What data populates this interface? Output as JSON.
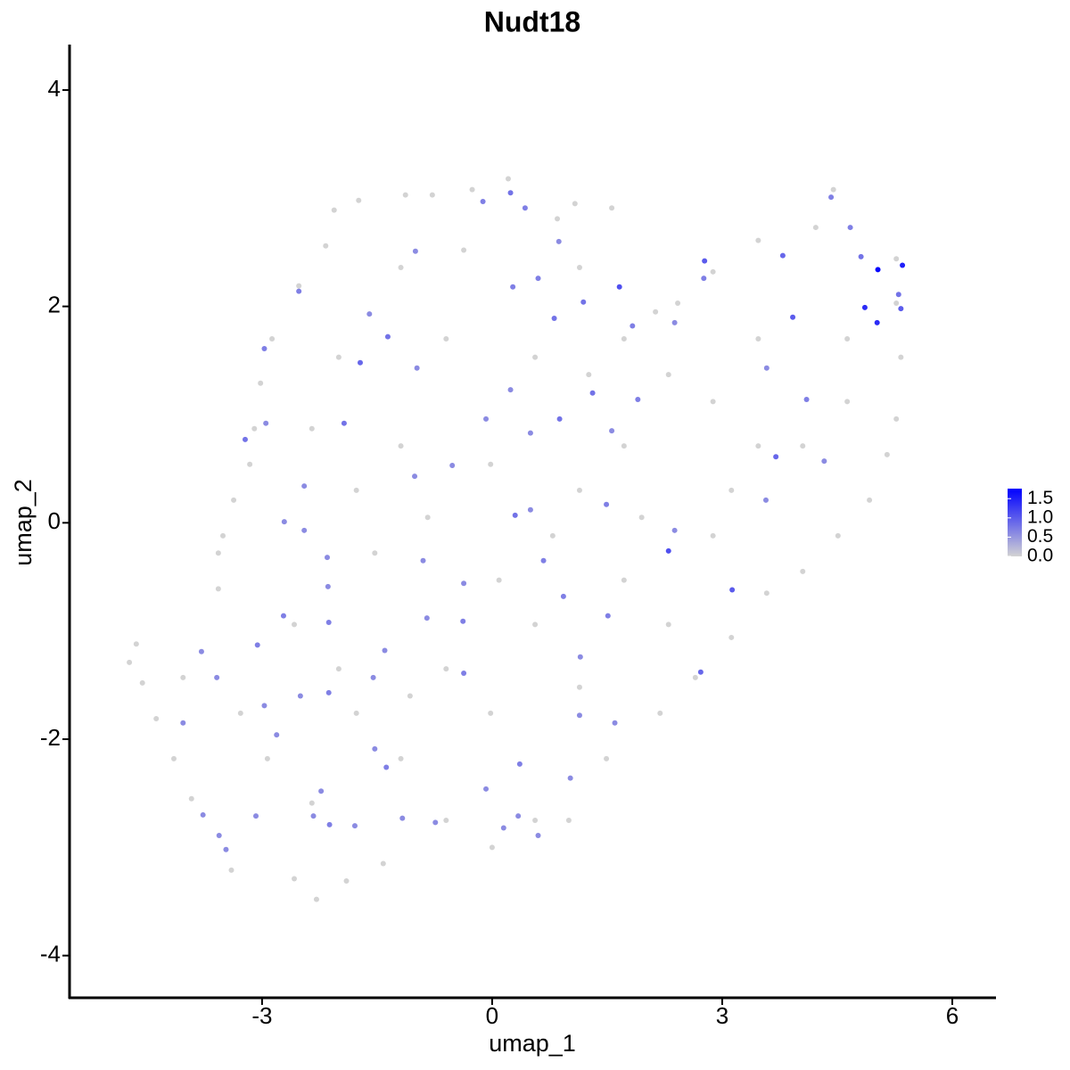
{
  "chart_data": {
    "type": "scatter",
    "title": "Nudt18",
    "x_label": "umap_1",
    "y_label": "umap_2",
    "xlim": [
      -5.51,
      6.57
    ],
    "xticks": [
      -3,
      0,
      3,
      6
    ],
    "ylim": [
      -4.39,
      4.42
    ],
    "yticks": [
      -4,
      -2,
      0,
      2,
      4
    ],
    "colors": [
      "#d3d3d3",
      "#0000ff"
    ],
    "clim": [
      0,
      1.76
    ],
    "cticks": [
      {
        "value": 0,
        "label": "0.0"
      },
      0.5,
      {
        "value": 1,
        "label": "1.0"
      },
      1.5
    ],
    "x": [
      -4.73,
      -4.64,
      -4.56,
      -4.38,
      -4.15,
      -3.92,
      -3.4,
      -2.58,
      -2.29,
      -1.9,
      -1.42,
      -0.6,
      0,
      0.56,
      1.0,
      1.49,
      2.19,
      2.65,
      3.12,
      3.58,
      4.05,
      4.51,
      4.92,
      5.15,
      5.27,
      5.33,
      5.27,
      5.27,
      4.45,
      4.22,
      3.47,
      2.88,
      2.42,
      2.13,
      1.72,
      1.26,
      1.08,
      1.56,
      0.85,
      0.21,
      -0.26,
      -0.78,
      -1.13,
      -1.74,
      -2.06,
      -2.17,
      -2.52,
      -2.87,
      -3.02,
      -3.1,
      -3.16,
      -3.37,
      -3.51,
      -3.57,
      -3.57,
      -4.03,
      -0.6,
      0.56,
      1.72,
      2.88,
      3.47,
      4.63,
      4.05,
      1.14,
      -0.02,
      -1.19,
      -1.77,
      -2.35,
      -2.0,
      -1.19,
      -0.37,
      1.14,
      2.3,
      2.88,
      1.72,
      0.56,
      -0.6,
      -1.77,
      -2.93,
      -2.35,
      -1.19,
      -0.02,
      1.14,
      2.3,
      3.47,
      4.63,
      -1.53,
      0.09,
      -0.84,
      0.79,
      1.95,
      3.12,
      -2.58,
      -3.28,
      -2.0,
      -1.07,
      5.03,
      5.35,
      4.86,
      5.02,
      1.66,
      2.3,
      3.13,
      2.72,
      2.77,
      3.79,
      3.92,
      3.7,
      4.81,
      4.42,
      5.3,
      5.33,
      4.67,
      0.24,
      -0.12,
      0.43,
      -1.0,
      -1.72,
      -1.6,
      0.27,
      0.6,
      0.87,
      0.81,
      1.19,
      -3.22,
      -2.95,
      -2.97,
      -2.52,
      -1.93,
      -1.36,
      -0.08,
      0.88,
      1.56,
      1.31,
      1.9,
      1.83,
      0.3,
      0.5,
      1.49,
      0.67,
      0.93,
      -2.71,
      -2.45,
      -2.14,
      -2.72,
      -2.15,
      -3.06,
      -2.13,
      -2.97,
      -2.13,
      -2.5,
      -2.81,
      -3.77,
      -3.47,
      -3.56,
      -3.08,
      -2.23,
      -2.12,
      -2.33,
      -1.79,
      -1.38,
      -1.53,
      -1.17,
      -0.74,
      -0.08,
      0.36,
      0.34,
      0.6,
      0.15,
      1.02,
      1.14,
      1.51,
      1.15,
      -0.38,
      -0.37,
      -0.85,
      -0.9,
      -1.4,
      -1.55,
      -3.79,
      -3.59,
      -4.03,
      0.5,
      0.24,
      -0.98,
      -1.01,
      -0.52,
      -0.37,
      2.38,
      3.58,
      4.1,
      4.33,
      3.57,
      2.76,
      2.38,
      1.6,
      -2.45
    ],
    "y": [
      -1.29,
      -1.12,
      -1.48,
      -1.81,
      -2.18,
      -2.55,
      -3.21,
      -3.29,
      -3.48,
      -3.31,
      -3.15,
      -2.75,
      -3.0,
      -2.75,
      -2.75,
      -2.18,
      -1.76,
      -1.43,
      -1.06,
      -0.65,
      -0.45,
      -0.12,
      0.21,
      0.63,
      0.96,
      1.53,
      2.03,
      2.44,
      3.08,
      2.73,
      2.61,
      2.32,
      2.03,
      1.95,
      1.7,
      1.37,
      2.95,
      2.91,
      2.81,
      3.18,
      3.08,
      3.03,
      3.03,
      2.98,
      2.89,
      2.56,
      2.19,
      1.7,
      1.29,
      0.87,
      0.54,
      0.21,
      -0.12,
      -0.28,
      -0.61,
      -1.43,
      1.7,
      1.53,
      0.71,
      1.12,
      1.7,
      1.7,
      0.71,
      0.3,
      0.54,
      0.71,
      0.3,
      0.87,
      1.53,
      2.36,
      2.52,
      2.36,
      1.37,
      -0.12,
      -0.53,
      -0.94,
      -1.35,
      -1.76,
      -2.18,
      -2.59,
      -2.18,
      -1.76,
      -1.52,
      -0.94,
      0.71,
      1.12,
      -0.28,
      -0.53,
      0.05,
      -0.12,
      0.05,
      0.3,
      -0.94,
      -1.76,
      -1.35,
      -1.6,
      2.34,
      2.38,
      1.99,
      1.85,
      2.18,
      -0.26,
      -0.62,
      -1.38,
      2.42,
      2.47,
      1.9,
      0.61,
      2.46,
      3.01,
      2.11,
      1.98,
      2.73,
      3.05,
      2.97,
      2.91,
      2.51,
      1.48,
      1.93,
      2.18,
      2.26,
      2.6,
      1.89,
      2.04,
      0.77,
      0.92,
      1.61,
      2.14,
      0.92,
      1.72,
      0.96,
      0.96,
      0.85,
      1.2,
      1.14,
      1.82,
      0.07,
      0.12,
      0.17,
      -0.35,
      -0.68,
      0.01,
      0.34,
      -0.59,
      -0.86,
      -0.32,
      -1.13,
      -0.92,
      -1.69,
      -1.57,
      -1.6,
      -1.96,
      -2.7,
      -3.02,
      -2.89,
      -2.71,
      -2.48,
      -2.79,
      -2.71,
      -2.8,
      -2.26,
      -2.09,
      -2.73,
      -2.77,
      -2.46,
      -2.23,
      -2.71,
      -2.89,
      -2.82,
      -2.36,
      -1.78,
      -0.86,
      -1.24,
      -0.91,
      -1.39,
      -0.88,
      -0.35,
      -1.18,
      -1.43,
      -1.19,
      -1.43,
      -1.85,
      0.83,
      1.23,
      1.43,
      0.43,
      0.53,
      -0.56,
      1.85,
      1.43,
      1.14,
      0.57,
      0.21,
      2.26,
      -0.07,
      -1.85,
      -0.07
    ],
    "values": [
      0,
      0,
      0,
      0,
      0,
      0,
      0,
      0,
      0,
      0,
      0,
      0,
      0,
      0,
      0,
      0,
      0,
      0,
      0,
      0,
      0,
      0,
      0,
      0,
      0,
      0,
      0,
      0,
      0,
      0,
      0,
      0,
      0,
      0,
      0,
      0,
      0,
      0,
      0,
      0,
      0,
      0,
      0,
      0,
      0,
      0,
      0,
      0,
      0,
      0,
      0,
      0,
      0,
      0,
      0,
      0,
      0,
      0,
      0,
      0,
      0,
      0,
      0,
      0,
      0,
      0,
      0,
      0,
      0,
      0,
      0,
      0,
      0,
      0,
      0,
      0,
      0,
      0,
      0,
      0,
      0,
      0,
      0,
      0,
      0,
      0,
      0,
      0,
      0,
      0,
      0,
      0,
      0,
      0,
      0,
      0,
      1.7,
      1.5,
      1.4,
      1.4,
      1.1,
      1.1,
      1.0,
      0.9,
      1.0,
      0.9,
      1.0,
      0.9,
      0.8,
      0.7,
      0.8,
      1.0,
      0.7,
      0.8,
      0.7,
      0.7,
      0.6,
      0.9,
      0.6,
      0.7,
      0.7,
      0.6,
      0.8,
      0.8,
      0.8,
      0.6,
      0.7,
      0.7,
      0.8,
      0.8,
      0.6,
      0.8,
      0.6,
      0.8,
      0.7,
      0.7,
      0.8,
      0.6,
      0.7,
      0.7,
      0.7,
      0.6,
      0.6,
      0.6,
      0.7,
      0.6,
      0.7,
      0.7,
      0.6,
      0.7,
      0.6,
      0.6,
      0.6,
      0.6,
      0.6,
      0.6,
      0.6,
      0.7,
      0.6,
      0.6,
      0.7,
      0.6,
      0.6,
      0.6,
      0.6,
      0.7,
      0.6,
      0.6,
      0.6,
      0.6,
      0.6,
      0.7,
      0.6,
      0.7,
      0.7,
      0.6,
      0.6,
      0.6,
      0.6,
      0.6,
      0.6,
      0.6,
      0.6,
      0.6,
      0.6,
      0.6,
      0.6,
      0.6,
      0.6,
      0.6,
      0.7,
      0.6,
      0.6,
      0.7,
      0.6,
      0.6,
      0.6
    ]
  }
}
